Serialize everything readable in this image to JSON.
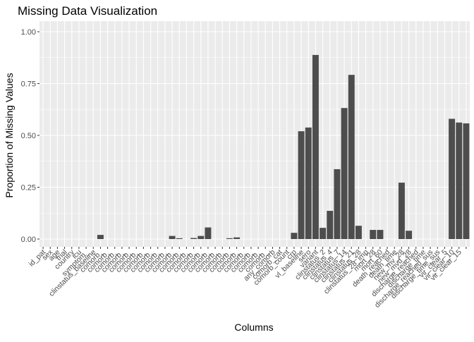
{
  "chart_data": {
    "type": "bar",
    "title": "Missing Data Visualization",
    "xlabel": "Columns",
    "ylabel": "Proportion of Missing Values",
    "ylim": [
      0,
      1.0
    ],
    "yticks": [
      0.0,
      0.25,
      0.5,
      0.75,
      1.0
    ],
    "ytick_labels": [
      "0.00",
      "0.25",
      "0.50",
      "0.75",
      "1.00"
    ],
    "grid": true,
    "legend": "none",
    "colors": {
      "panel": "#ebebeb",
      "grid_major": "#ffffff",
      "bar": "#4d4d4d",
      "tick_text": "#4d4d4d",
      "text": "#000000"
    },
    "categories": [
      "id_pat",
      "sex",
      "age",
      "trial",
      "country",
      "icu",
      "symptom_",
      "clinstatus_baseline",
      "comorb_",
      "comorb_",
      "comorb_",
      "comorb_",
      "comorb_",
      "comorb_",
      "comorb_",
      "comorb_",
      "comorb_",
      "comorb_",
      "comorb_",
      "comorb_",
      "comorb_",
      "comorb_",
      "comorb_",
      "comorb_",
      "comorb_",
      "comorb_",
      "comorb_",
      "comorb_",
      "comorb_",
      "comorb_",
      "comorb_",
      "comorb_",
      "any_comorb",
      "comorb_cat",
      "comorb_count",
      "crp",
      "vl_baseline",
      "sero",
      "variant",
      "clinstatus_2",
      "clinstatus_4",
      "clinstatus_7",
      "clinstatus_14",
      "clinstatus_21",
      "clinstatus_28",
      "clinstatus_28_imp",
      "mort_28",
      "mort_60",
      "death_reached",
      "death_time",
      "new_mv_28",
      "new_mvd_28",
      "discharge_reached",
      "discharge_time",
      "discharge_reached_sus",
      "discharge_time_sus",
      "vir_clear_5",
      "vir_clear_10",
      "vir_clear_15",
      ""
    ],
    "values": [
      0,
      0,
      0,
      0,
      0,
      0,
      0,
      0,
      0.02,
      0,
      0,
      0,
      0,
      0,
      0,
      0,
      0,
      0,
      0.015,
      0.004,
      0,
      0.005,
      0.015,
      0.056,
      0,
      0,
      0.004,
      0.008,
      0,
      0,
      0,
      0,
      0,
      0,
      0,
      0.03,
      0.52,
      0.538,
      0.888,
      0.054,
      0.136,
      0.337,
      0.632,
      0.792,
      0.064,
      0,
      0.044,
      0.044,
      0,
      0,
      0.272,
      0.04,
      0,
      0,
      0,
      0,
      0,
      0.58,
      0.562,
      0.558
    ]
  }
}
